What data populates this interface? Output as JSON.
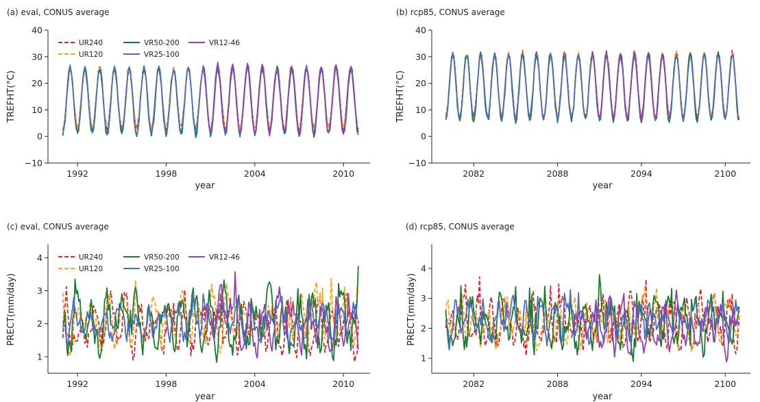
{
  "chart_data": [
    {
      "type": "line",
      "title": "(a) eval, CONUS average",
      "xlabel": "year",
      "ylabel": "TREFHT(°C)",
      "xlim": [
        1990.0,
        2011.8
      ],
      "ylim": [
        -10,
        40
      ],
      "xticks": [
        1992,
        1998,
        2004,
        2010
      ],
      "yticks": [
        -10,
        0,
        10,
        20,
        30,
        40
      ],
      "ytick_labels": [
        "−10",
        "0",
        "10",
        "20",
        "30",
        "40"
      ],
      "legend": {
        "location": "top-left",
        "columns": 3
      },
      "x_start": 1991.0,
      "x_end": 2011.0,
      "series": [
        {
          "name": "UR240",
          "color": "#d62728",
          "dash": "dashed",
          "cycle": {
            "min": 3.0,
            "max": 25.5
          }
        },
        {
          "name": "UR120",
          "color": "#ff9f1c",
          "dash": "dashed",
          "cycle": {
            "min": 3.3,
            "max": 25.6
          }
        },
        {
          "name": "VR50-200",
          "color": "#1a7a2e",
          "dash": "solid",
          "cycle": {
            "min": 0.8,
            "max": 25.7
          }
        },
        {
          "name": "VR25-100",
          "color": "#4a6fc2",
          "dash": "solid",
          "cycle": {
            "min": 1.6,
            "max": 25.6
          }
        },
        {
          "name": "VR12-46",
          "color": "#8e44ad",
          "dash": "solid",
          "cycle": {
            "min": 1.2,
            "max": 26.8
          },
          "x_start": 2000.5
        }
      ]
    },
    {
      "type": "line",
      "title": "(b) rcp85, CONUS average",
      "xlabel": "year",
      "ylabel": "TREFHT(°C)",
      "xlim": [
        2079.0,
        2101.8
      ],
      "ylim": [
        -10,
        40
      ],
      "xticks": [
        2082,
        2088,
        2094,
        2100
      ],
      "yticks": [
        -10,
        0,
        10,
        20,
        30,
        40
      ],
      "ytick_labels": [
        "−10",
        "0",
        "10",
        "20",
        "30",
        "40"
      ],
      "x_start": 2080.0,
      "x_end": 2101.0,
      "series": [
        {
          "name": "UR240",
          "color": "#d62728",
          "dash": "dashed",
          "cycle": {
            "min": 7.2,
            "max": 31.2
          }
        },
        {
          "name": "UR120",
          "color": "#ff9f1c",
          "dash": "dashed",
          "cycle": {
            "min": 7.5,
            "max": 31.0
          }
        },
        {
          "name": "VR50-200",
          "color": "#1a7a2e",
          "dash": "solid",
          "cycle": {
            "min": 5.8,
            "max": 30.8
          }
        },
        {
          "name": "VR25-100",
          "color": "#4a6fc2",
          "dash": "solid",
          "cycle": {
            "min": 6.8,
            "max": 30.6
          }
        },
        {
          "name": "VR12-46",
          "color": "#8e44ad",
          "dash": "solid",
          "cycle": {
            "min": 6.6,
            "max": 31.5
          },
          "x_start": 2090.5,
          "x_end": 2096.0
        }
      ]
    },
    {
      "type": "line",
      "title": "(c) eval, CONUS average",
      "xlabel": "year",
      "ylabel": "PRECT(mm/day)",
      "xlim": [
        1990.0,
        2011.8
      ],
      "ylim": [
        0.5,
        4.4
      ],
      "xticks": [
        1992,
        1998,
        2004,
        2010
      ],
      "yticks": [
        1,
        2,
        3,
        4
      ],
      "ytick_labels": [
        "1",
        "2",
        "3",
        "4"
      ],
      "legend": {
        "location": "top-left",
        "columns": 3
      },
      "x_start": 1991.0,
      "x_end": 2011.0,
      "series": [
        {
          "name": "UR240",
          "color": "#d62728",
          "dash": "dashed",
          "cycle": {
            "min": 1.1,
            "max": 2.9
          }
        },
        {
          "name": "UR120",
          "color": "#ff9f1c",
          "dash": "dashed",
          "cycle": {
            "min": 1.2,
            "max": 3.0
          }
        },
        {
          "name": "VR50-200",
          "color": "#1a7a2e",
          "dash": "solid",
          "cycle": {
            "min": 1.0,
            "max": 3.0
          }
        },
        {
          "name": "VR25-100",
          "color": "#4a6fc2",
          "dash": "solid",
          "cycle": {
            "min": 1.5,
            "max": 2.7
          }
        },
        {
          "name": "VR12-46",
          "color": "#8e44ad",
          "dash": "solid",
          "cycle": {
            "min": 1.3,
            "max": 3.0
          },
          "x_start": 2000.5
        }
      ]
    },
    {
      "type": "line",
      "title": "(d) rcp85, CONUS average",
      "xlabel": "year",
      "ylabel": "PRECT(mm/day)",
      "xlim": [
        2079.0,
        2101.8
      ],
      "ylim": [
        0.5,
        4.8
      ],
      "xticks": [
        2082,
        2088,
        2094,
        2100
      ],
      "yticks": [
        1,
        2,
        3,
        4
      ],
      "ytick_labels": [
        "1",
        "2",
        "3",
        "4"
      ],
      "x_start": 2080.0,
      "x_end": 2101.0,
      "series": [
        {
          "name": "UR240",
          "color": "#d62728",
          "dash": "dashed",
          "cycle": {
            "min": 1.2,
            "max": 3.0
          }
        },
        {
          "name": "UR120",
          "color": "#ff9f1c",
          "dash": "dashed",
          "cycle": {
            "min": 1.4,
            "max": 3.0
          }
        },
        {
          "name": "VR50-200",
          "color": "#1a7a2e",
          "dash": "solid",
          "cycle": {
            "min": 1.2,
            "max": 3.1
          }
        },
        {
          "name": "VR25-100",
          "color": "#4a6fc2",
          "dash": "solid",
          "cycle": {
            "min": 1.5,
            "max": 3.0
          }
        },
        {
          "name": "VR12-46",
          "color": "#8e44ad",
          "dash": "solid",
          "cycle": {
            "min": 1.2,
            "max": 3.1
          },
          "x_start": 2089.0
        }
      ]
    }
  ]
}
